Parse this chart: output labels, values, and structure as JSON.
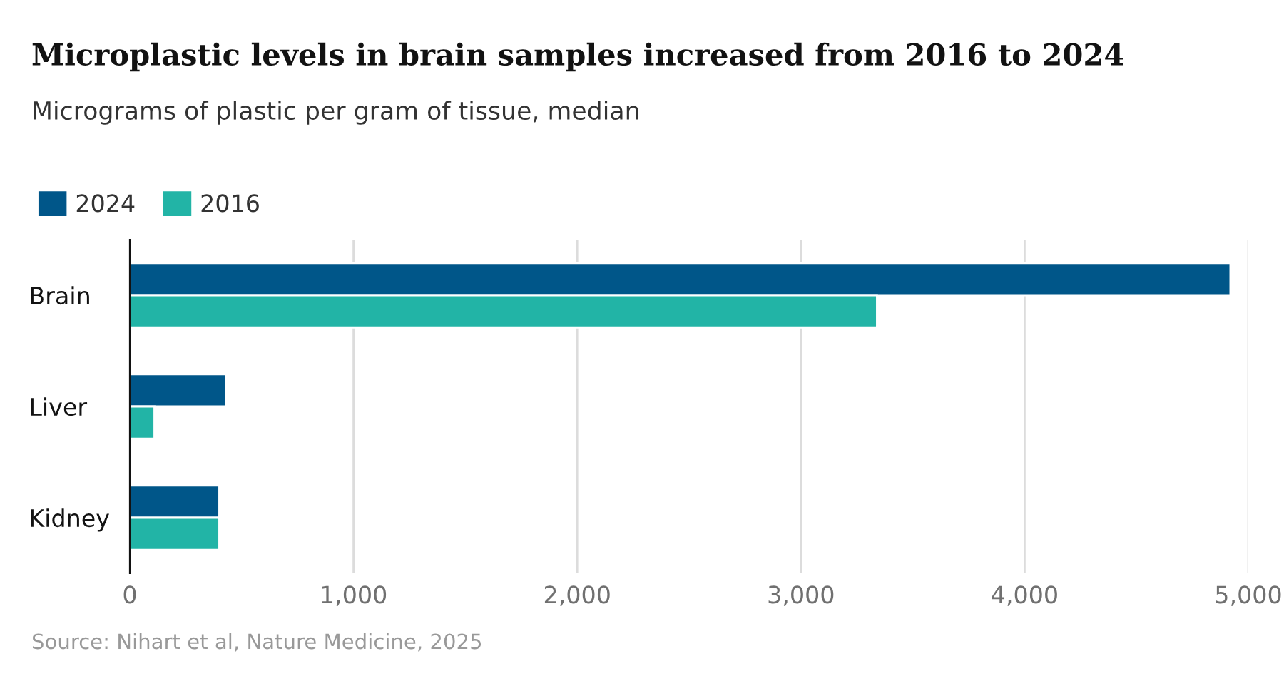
{
  "chart_data": {
    "type": "bar",
    "orientation": "horizontal",
    "title": "Microplastic levels in brain samples increased from 2016 to 2024",
    "subtitle": "Micrograms of plastic per gram of tissue, median",
    "categories": [
      "Brain",
      "Liver",
      "Kidney"
    ],
    "series": [
      {
        "name": "2024",
        "color": "#005689",
        "values": [
          4920,
          430,
          400
        ]
      },
      {
        "name": "2016",
        "color": "#22b4a6",
        "values": [
          3340,
          110,
          400
        ]
      }
    ],
    "xlim": [
      0,
      5000
    ],
    "xticks": [
      0,
      {
        "value": 1000,
        "label": "1,000"
      },
      {
        "value": 2000,
        "label": "2,000"
      },
      {
        "value": 3000,
        "label": "3,000"
      },
      {
        "value": 4000,
        "label": "4,000"
      },
      {
        "value": 5000,
        "label": "5,000"
      }
    ],
    "grid": "x",
    "legend": "top left",
    "annotations": [
      "Source: Nihart et al, Nature Medicine, 2025"
    ]
  }
}
